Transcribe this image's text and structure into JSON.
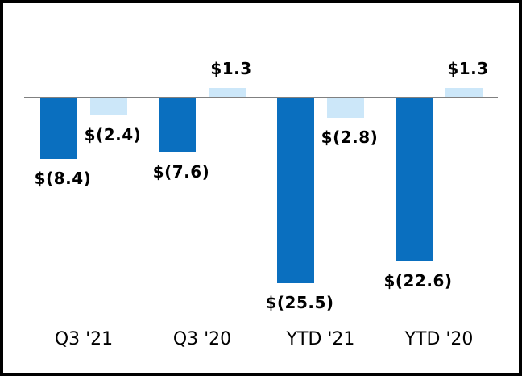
{
  "chart_data": {
    "type": "bar",
    "categories": [
      "Q3 '21",
      "Q3 '20",
      "YTD '21",
      "YTD '20"
    ],
    "series": [
      {
        "name": "dark-blue-series",
        "color": "#0a6fbf",
        "values": [
          -8.4,
          -7.6,
          -25.5,
          -22.6
        ],
        "labels": [
          "$(8.4)",
          "$(7.6)",
          "$(25.5)",
          "$(22.6)"
        ]
      },
      {
        "name": "light-blue-series",
        "color": "#cce7f9",
        "values": [
          -2.4,
          1.3,
          -2.8,
          1.3
        ],
        "labels": [
          "$(2.4)",
          "$1.3",
          "$(2.8)",
          "$1.3"
        ]
      }
    ],
    "title": "",
    "xlabel": "",
    "ylabel": "",
    "ylim": [
      -28,
      6
    ],
    "grid": false,
    "legend": "none",
    "axis_line_color": "#808080",
    "label_color": "#000000",
    "frame_border_color": "#000000"
  }
}
